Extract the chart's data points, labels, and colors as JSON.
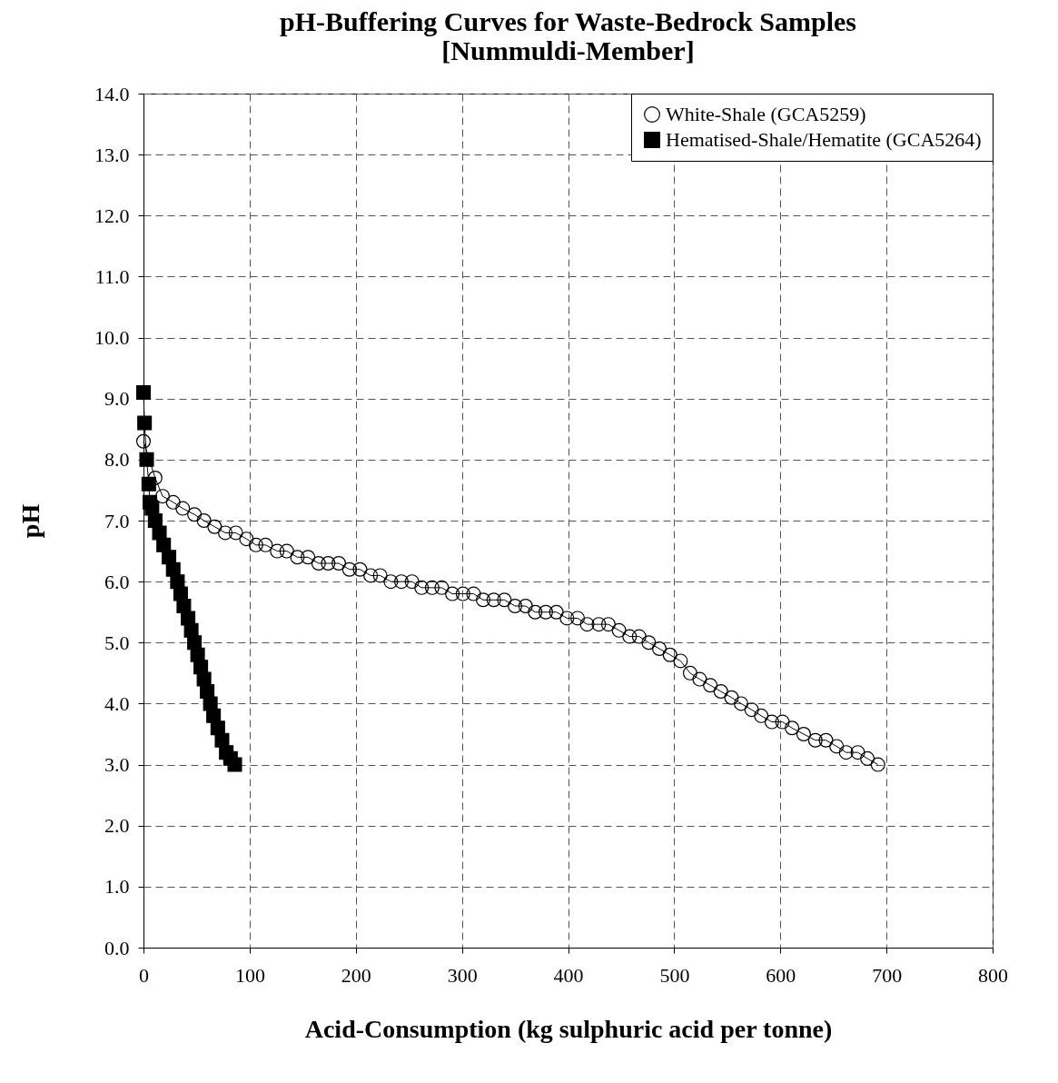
{
  "chart_data": {
    "type": "line",
    "title": "pH-Buffering Curves for Waste-Bedrock Samples\n[Nummuldi-Member]",
    "xlabel": "Acid-Consumption (kg sulphuric acid per tonne)",
    "ylabel": "pH",
    "xlim": [
      0,
      800
    ],
    "xticks": [
      0,
      100,
      200,
      300,
      400,
      500,
      600,
      700,
      800
    ],
    "ylim": [
      0,
      14
    ],
    "yticks": [
      {
        "value": 0,
        "label": "0.0"
      },
      {
        "value": 1,
        "label": "1.0"
      },
      {
        "value": 2,
        "label": "2.0"
      },
      {
        "value": 3,
        "label": "3.0"
      },
      {
        "value": 4,
        "label": "4.0"
      },
      {
        "value": 5,
        "label": "5.0"
      },
      {
        "value": 6,
        "label": "6.0"
      },
      {
        "value": 7,
        "label": "7.0"
      },
      {
        "value": 8,
        "label": "8.0"
      },
      {
        "value": 9,
        "label": "9.0"
      },
      {
        "value": 10,
        "label": "10.0"
      },
      {
        "value": 11,
        "label": "11.0"
      },
      {
        "value": 12,
        "label": "12.0"
      },
      {
        "value": 13,
        "label": "13.0"
      },
      {
        "value": 14,
        "label": "14.0"
      }
    ],
    "grid": true,
    "legend": "top right",
    "line_style": "solid",
    "series": [
      {
        "name": "White-Shale (GCA5259)",
        "color": "#000000",
        "marker": "circle",
        "x": [
          0,
          11,
          18,
          28,
          37,
          48,
          57,
          67,
          77,
          87,
          97,
          106,
          115,
          126,
          135,
          145,
          155,
          165,
          174,
          184,
          194,
          204,
          214,
          223,
          233,
          243,
          253,
          262,
          272,
          281,
          291,
          301,
          311,
          320,
          330,
          340,
          350,
          360,
          369,
          379,
          389,
          399,
          409,
          418,
          429,
          438,
          448,
          458,
          467,
          476,
          486,
          496,
          506,
          515,
          524,
          534,
          544,
          554,
          563,
          573,
          582,
          592,
          602,
          611,
          622,
          633,
          643,
          653,
          662,
          673,
          682,
          692
        ],
        "values": [
          8.3,
          7.7,
          7.4,
          7.3,
          7.2,
          7.1,
          7.0,
          6.9,
          6.8,
          6.8,
          6.7,
          6.6,
          6.6,
          6.5,
          6.5,
          6.4,
          6.4,
          6.3,
          6.3,
          6.3,
          6.2,
          6.2,
          6.1,
          6.1,
          6.0,
          6.0,
          6.0,
          5.9,
          5.9,
          5.9,
          5.8,
          5.8,
          5.8,
          5.7,
          5.7,
          5.7,
          5.6,
          5.6,
          5.5,
          5.5,
          5.5,
          5.4,
          5.4,
          5.3,
          5.3,
          5.3,
          5.2,
          5.1,
          5.1,
          5.0,
          4.9,
          4.8,
          4.7,
          4.5,
          4.4,
          4.3,
          4.2,
          4.1,
          4.0,
          3.9,
          3.8,
          3.7,
          3.7,
          3.6,
          3.5,
          3.4,
          3.4,
          3.3,
          3.2,
          3.2,
          3.1,
          3.0
        ]
      },
      {
        "name": "Hematised-Shale/Hematite (GCA5264)",
        "color": "#000000",
        "marker": "square",
        "x": [
          0,
          1,
          3,
          5,
          6,
          8,
          11,
          15,
          19,
          24,
          28,
          32,
          35,
          38,
          42,
          45,
          48,
          51,
          54,
          57,
          60,
          63,
          66,
          70,
          74,
          78,
          82,
          86
        ],
        "values": [
          9.1,
          8.6,
          8.0,
          7.6,
          7.3,
          7.2,
          7.0,
          6.8,
          6.6,
          6.4,
          6.2,
          6.0,
          5.8,
          5.6,
          5.4,
          5.2,
          5.0,
          4.8,
          4.6,
          4.4,
          4.2,
          4.0,
          3.8,
          3.6,
          3.4,
          3.2,
          3.1,
          3.0
        ]
      }
    ]
  }
}
